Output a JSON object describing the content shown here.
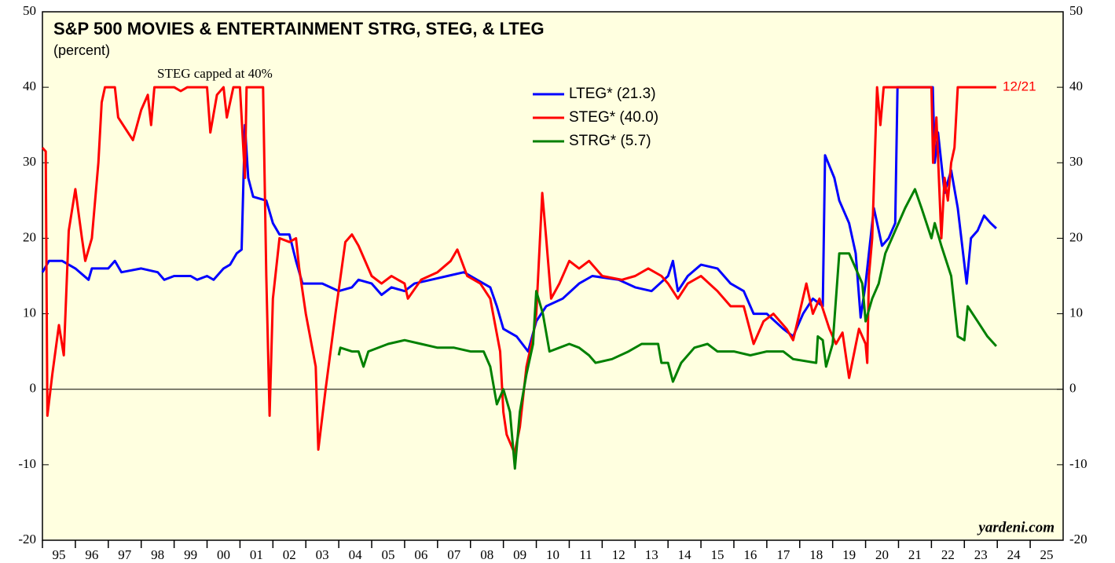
{
  "chart_data": {
    "type": "line",
    "title": "S&P 500 MOVIES & ENTERTAINMENT STRG, STEG, & LTEG",
    "subtitle": "(percent)",
    "annotations": {
      "cap": "STEG capped at 40%",
      "date": "12/21",
      "source": "yardeni.com"
    },
    "xlim": [
      1995,
      2026
    ],
    "xticks": [
      {
        "value": 1995,
        "label": "95"
      },
      {
        "value": 1996,
        "label": "96"
      },
      {
        "value": 1997,
        "label": "97"
      },
      {
        "value": 1998,
        "label": "98"
      },
      {
        "value": 1999,
        "label": "99"
      },
      {
        "value": 2000,
        "label": "00"
      },
      {
        "value": 2001,
        "label": "01"
      },
      {
        "value": 2002,
        "label": "02"
      },
      {
        "value": 2003,
        "label": "03"
      },
      {
        "value": 2004,
        "label": "04"
      },
      {
        "value": 2005,
        "label": "05"
      },
      {
        "value": 2006,
        "label": "06"
      },
      {
        "value": 2007,
        "label": "07"
      },
      {
        "value": 2008,
        "label": "08"
      },
      {
        "value": 2009,
        "label": "09"
      },
      {
        "value": 2010,
        "label": "10"
      },
      {
        "value": 2011,
        "label": "11"
      },
      {
        "value": 2012,
        "label": "12"
      },
      {
        "value": 2013,
        "label": "13"
      },
      {
        "value": 2014,
        "label": "14"
      },
      {
        "value": 2015,
        "label": "15"
      },
      {
        "value": 2016,
        "label": "16"
      },
      {
        "value": 2017,
        "label": "17"
      },
      {
        "value": 2018,
        "label": "18"
      },
      {
        "value": 2019,
        "label": "19"
      },
      {
        "value": 2020,
        "label": "20"
      },
      {
        "value": 2021,
        "label": "21"
      },
      {
        "value": 2022,
        "label": "22"
      },
      {
        "value": 2023,
        "label": "23"
      },
      {
        "value": 2024,
        "label": "24"
      },
      {
        "value": 2025,
        "label": "25"
      }
    ],
    "ylim": [
      -20,
      50
    ],
    "yticks": [
      -20,
      -10,
      0,
      10,
      20,
      30,
      40,
      50
    ],
    "series": [
      {
        "name": "LTEG* (21.3)",
        "color": "#0000ff",
        "x": [
          1995.0,
          1995.2,
          1995.6,
          1996.0,
          1996.4,
          1996.5,
          1997.0,
          1997.2,
          1997.4,
          1998.0,
          1998.5,
          1998.7,
          1999.0,
          1999.5,
          1999.7,
          2000.0,
          2000.2,
          2000.5,
          2000.7,
          2000.9,
          2001.05,
          2001.15,
          2001.25,
          2001.4,
          2001.8,
          2002.0,
          2002.2,
          2002.5,
          2002.7,
          2002.9,
          2003.5,
          2004.0,
          2004.4,
          2004.6,
          2005.0,
          2005.3,
          2005.6,
          2006.0,
          2006.3,
          2006.8,
          2007.3,
          2007.8,
          2008.2,
          2008.6,
          2008.8,
          2009.0,
          2009.4,
          2009.75,
          2010.0,
          2010.3,
          2010.8,
          2011.3,
          2011.7,
          2012.5,
          2013.0,
          2013.5,
          2014.0,
          2014.15,
          2014.3,
          2014.6,
          2015.0,
          2015.5,
          2015.9,
          2016.3,
          2016.6,
          2017.0,
          2017.5,
          2017.8,
          2018.1,
          2018.4,
          2018.7,
          2018.77,
          2019.05,
          2019.2,
          2019.5,
          2019.7,
          2019.85,
          2020.0,
          2020.25,
          2020.5,
          2020.7,
          2020.9,
          2020.97,
          2022.04,
          2022.1,
          2022.2,
          2022.4,
          2022.6,
          2022.8,
          2023.07,
          2023.2,
          2023.4,
          2023.6,
          2023.8,
          2023.97
        ],
        "values": [
          15.5,
          17,
          17,
          16,
          14.5,
          16,
          16,
          17,
          15.5,
          16,
          15.5,
          14.5,
          15,
          15,
          14.5,
          15,
          14.5,
          16,
          16.5,
          18,
          18.5,
          35,
          28,
          25.5,
          25,
          22,
          20.5,
          20.5,
          17,
          14,
          14,
          13,
          13.5,
          14.5,
          14,
          12.5,
          13.5,
          13,
          14,
          14.5,
          15,
          15.5,
          14.5,
          13.5,
          11,
          8,
          7,
          5,
          9,
          11,
          12,
          14,
          15,
          14.5,
          13.5,
          13,
          15,
          17,
          13,
          15,
          16.5,
          16,
          14,
          13,
          10,
          10,
          8,
          7,
          10,
          12,
          11,
          31,
          28,
          25,
          22,
          18,
          9.5,
          14,
          24,
          19,
          20,
          22,
          40,
          40,
          30,
          34,
          26,
          29,
          24,
          14,
          20,
          21,
          23,
          22,
          21.3
        ]
      },
      {
        "name": "STEG* (40.0)",
        "color": "#ff0000",
        "x": [
          1995.0,
          1995.1,
          1995.15,
          1995.3,
          1995.5,
          1995.65,
          1995.8,
          1996.0,
          1996.2,
          1996.3,
          1996.5,
          1996.7,
          1996.8,
          1996.9,
          1997.2,
          1997.3,
          1997.6,
          1997.75,
          1998.0,
          1998.2,
          1998.3,
          1998.4,
          1999.0,
          1999.2,
          1999.4,
          2000.0,
          2000.1,
          2000.3,
          2000.5,
          2000.6,
          2000.8,
          2001.0,
          2001.15,
          2001.2,
          2001.7,
          2001.8,
          2001.9,
          2002.0,
          2002.2,
          2002.5,
          2002.7,
          2002.8,
          2003.0,
          2003.3,
          2003.38,
          2003.6,
          2003.9,
          2004.2,
          2004.4,
          2004.6,
          2005.0,
          2005.3,
          2005.6,
          2006.0,
          2006.1,
          2006.5,
          2007.0,
          2007.4,
          2007.6,
          2007.9,
          2008.3,
          2008.6,
          2008.9,
          2009.0,
          2009.1,
          2009.34,
          2009.5,
          2009.7,
          2009.9,
          2010.0,
          2010.18,
          2010.3,
          2010.45,
          2010.7,
          2011.0,
          2011.3,
          2011.6,
          2012.0,
          2012.6,
          2013.0,
          2013.4,
          2013.8,
          2014.0,
          2014.3,
          2014.6,
          2015.0,
          2015.5,
          2015.9,
          2016.3,
          2016.6,
          2016.9,
          2017.2,
          2017.6,
          2017.8,
          2018.2,
          2018.4,
          2018.6,
          2018.9,
          2019.1,
          2019.3,
          2019.5,
          2019.8,
          2020.0,
          2020.05,
          2020.1,
          2020.2,
          2020.35,
          2020.45,
          2020.55,
          2022.0,
          2022.05,
          2022.15,
          2022.3,
          2022.4,
          2022.5,
          2022.6,
          2022.7,
          2022.8,
          2023.97
        ],
        "values": [
          32,
          31.5,
          -3.5,
          2,
          8.5,
          4.5,
          21,
          26.5,
          20,
          17,
          20,
          30,
          38,
          40,
          40,
          36,
          34,
          33,
          37,
          39,
          35,
          40,
          40,
          39.5,
          40,
          40,
          34,
          39,
          40,
          36,
          40,
          40,
          28,
          40,
          40,
          15,
          -3.5,
          12,
          20,
          19.5,
          20,
          16,
          10,
          3,
          -8,
          0,
          10,
          19.5,
          20.5,
          19,
          15,
          14,
          15,
          14,
          12,
          14.5,
          15.5,
          17,
          18.5,
          15,
          14,
          12,
          5,
          -3,
          -6,
          -8.5,
          -5,
          3,
          7,
          10,
          26,
          20,
          12,
          14,
          17,
          16,
          17,
          15,
          14.5,
          15,
          16,
          15,
          14,
          12,
          14,
          15,
          13,
          11,
          11,
          6,
          9,
          10,
          8,
          6.5,
          14,
          10,
          12,
          8,
          6,
          7.5,
          1.5,
          8,
          6,
          3.5,
          15,
          20,
          40,
          35,
          40,
          40,
          30,
          36,
          20,
          28,
          25,
          30,
          32,
          40,
          40
        ]
      },
      {
        "name": "STRG* (5.7)",
        "color": "#008000",
        "x": [
          2004.0,
          2004.05,
          2004.4,
          2004.6,
          2004.75,
          2004.9,
          2005.5,
          2006.0,
          2006.5,
          2007.0,
          2007.5,
          2008.0,
          2008.4,
          2008.6,
          2008.8,
          2009.0,
          2009.2,
          2009.35,
          2009.5,
          2009.7,
          2009.9,
          2010.0,
          2010.2,
          2010.4,
          2010.7,
          2011.0,
          2011.3,
          2011.6,
          2011.8,
          2012.3,
          2012.8,
          2013.2,
          2013.7,
          2013.8,
          2014.0,
          2014.15,
          2014.4,
          2014.8,
          2015.2,
          2015.5,
          2016.0,
          2016.5,
          2017.0,
          2017.5,
          2017.8,
          2018.5,
          2018.55,
          2018.7,
          2018.8,
          2019.0,
          2019.2,
          2019.5,
          2019.7,
          2019.9,
          2020.0,
          2020.2,
          2020.4,
          2020.6,
          2020.9,
          2021.2,
          2021.5,
          2021.7,
          2022.0,
          2022.1,
          2022.3,
          2022.6,
          2022.8,
          2023.0,
          2023.1,
          2023.4,
          2023.7,
          2023.97
        ],
        "values": [
          4.5,
          5.5,
          5,
          5,
          3,
          5,
          6,
          6.5,
          6,
          5.5,
          5.5,
          5,
          5,
          3,
          -2,
          0,
          -3,
          -10.5,
          -3,
          2,
          6,
          13,
          10,
          5,
          5.5,
          6,
          5.5,
          4.5,
          3.5,
          4,
          5,
          6,
          6,
          3.5,
          3.5,
          1,
          3.5,
          5.5,
          6,
          5,
          5,
          4.5,
          5,
          5,
          4,
          3.5,
          7,
          6.5,
          3,
          6,
          18,
          18,
          16,
          14,
          9,
          12,
          14,
          18,
          21,
          24,
          26.5,
          24,
          20,
          22,
          19,
          15,
          7,
          6.5,
          11,
          9,
          7,
          5.7
        ]
      }
    ]
  }
}
